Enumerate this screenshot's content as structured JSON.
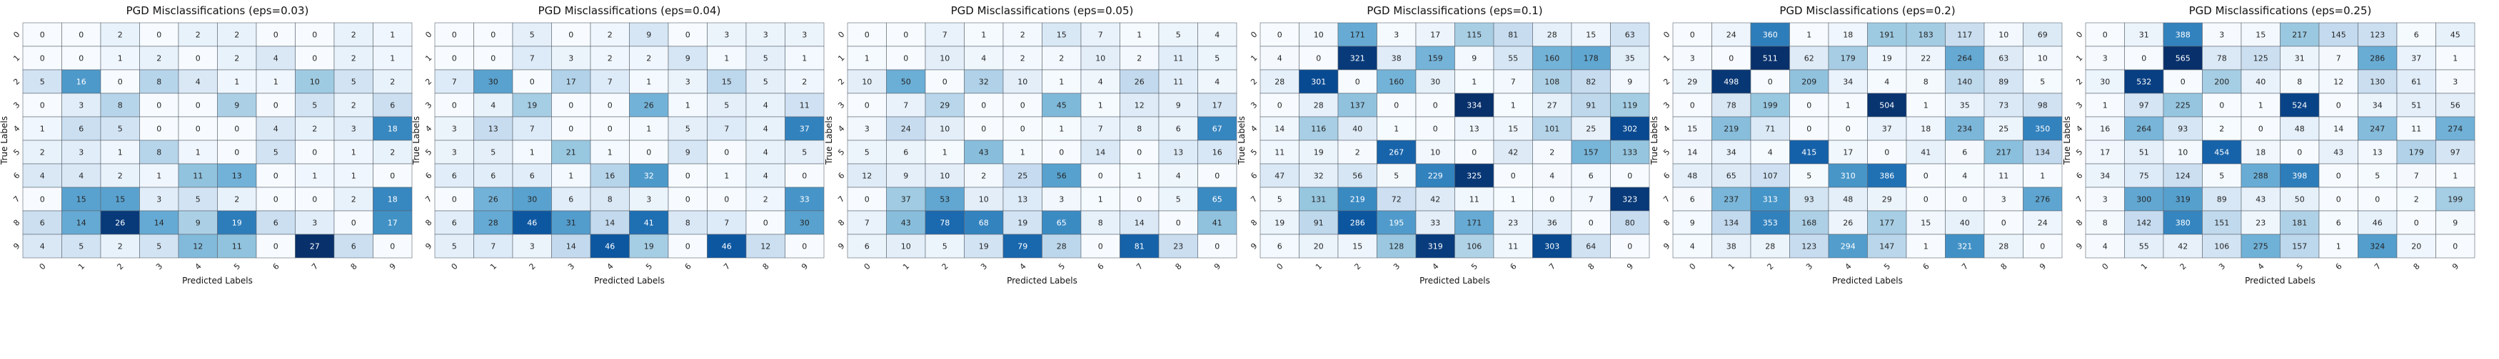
{
  "chart_data": [
    {
      "type": "heatmap",
      "title": "PGD Misclassifications (eps=0.03)",
      "xlabel": "Predicted Labels",
      "ylabel": "True Labels",
      "x_tick_labels": [
        "0",
        "1",
        "2",
        "3",
        "4",
        "5",
        "6",
        "7",
        "8",
        "9"
      ],
      "y_tick_labels": [
        "0",
        "1",
        "2",
        "3",
        "4",
        "5",
        "6",
        "7",
        "8",
        "9"
      ],
      "colormap": "Blues",
      "color_range": [
        0,
        27
      ],
      "values": [
        [
          0,
          0,
          2,
          0,
          2,
          2,
          0,
          0,
          2,
          1
        ],
        [
          0,
          0,
          1,
          2,
          0,
          2,
          4,
          0,
          2,
          1
        ],
        [
          5,
          16,
          0,
          8,
          4,
          1,
          1,
          10,
          5,
          2
        ],
        [
          0,
          3,
          8,
          0,
          0,
          9,
          0,
          5,
          2,
          6
        ],
        [
          1,
          6,
          5,
          0,
          0,
          0,
          4,
          2,
          3,
          18
        ],
        [
          2,
          3,
          1,
          8,
          1,
          0,
          5,
          0,
          1,
          2
        ],
        [
          4,
          4,
          2,
          1,
          11,
          13,
          0,
          1,
          1,
          0
        ],
        [
          0,
          15,
          15,
          3,
          5,
          2,
          0,
          0,
          2,
          18
        ],
        [
          6,
          14,
          26,
          14,
          9,
          19,
          6,
          3,
          0,
          17
        ],
        [
          4,
          5,
          2,
          5,
          12,
          11,
          0,
          27,
          6,
          0
        ]
      ]
    },
    {
      "type": "heatmap",
      "title": "PGD Misclassifications (eps=0.04)",
      "xlabel": "Predicted Labels",
      "ylabel": "True Labels",
      "x_tick_labels": [
        "0",
        "1",
        "2",
        "3",
        "4",
        "5",
        "6",
        "7",
        "8",
        "9"
      ],
      "y_tick_labels": [
        "0",
        "1",
        "2",
        "3",
        "4",
        "5",
        "6",
        "7",
        "8",
        "9"
      ],
      "colormap": "Blues",
      "color_range": [
        0,
        54
      ],
      "values": [
        [
          0,
          0,
          5,
          0,
          2,
          9,
          0,
          3,
          3,
          3
        ],
        [
          0,
          0,
          7,
          3,
          2,
          2,
          9,
          1,
          5,
          1
        ],
        [
          7,
          30,
          0,
          17,
          7,
          1,
          3,
          15,
          5,
          2
        ],
        [
          0,
          4,
          19,
          0,
          0,
          26,
          1,
          5,
          4,
          11
        ],
        [
          3,
          13,
          7,
          0,
          0,
          1,
          5,
          7,
          4,
          37
        ],
        [
          3,
          5,
          1,
          21,
          1,
          0,
          9,
          0,
          4,
          5
        ],
        [
          6,
          6,
          6,
          1,
          16,
          32,
          0,
          1,
          4,
          0
        ],
        [
          0,
          26,
          30,
          6,
          8,
          3,
          0,
          0,
          2,
          33
        ],
        [
          6,
          28,
          46,
          31,
          14,
          41,
          8,
          7,
          0,
          30
        ],
        [
          5,
          7,
          3,
          14,
          46,
          19,
          0,
          46,
          12,
          0
        ]
      ]
    },
    {
      "type": "heatmap",
      "title": "PGD Misclassifications (eps=0.05)",
      "xlabel": "Predicted Labels",
      "ylabel": "True Labels",
      "x_tick_labels": [
        "0",
        "1",
        "2",
        "3",
        "4",
        "5",
        "6",
        "7",
        "8",
        "9"
      ],
      "y_tick_labels": [
        "0",
        "1",
        "2",
        "3",
        "4",
        "5",
        "6",
        "7",
        "8",
        "9"
      ],
      "colormap": "Blues",
      "color_range": [
        0,
        100
      ],
      "values": [
        [
          0,
          0,
          7,
          1,
          2,
          15,
          7,
          1,
          5,
          4
        ],
        [
          1,
          0,
          10,
          4,
          2,
          2,
          10,
          2,
          11,
          5
        ],
        [
          10,
          50,
          0,
          32,
          10,
          1,
          4,
          26,
          11,
          4
        ],
        [
          0,
          7,
          29,
          0,
          0,
          45,
          1,
          12,
          9,
          17
        ],
        [
          3,
          24,
          10,
          0,
          0,
          1,
          7,
          8,
          6,
          67
        ],
        [
          5,
          6,
          1,
          43,
          1,
          0,
          14,
          0,
          13,
          16
        ],
        [
          12,
          9,
          10,
          2,
          25,
          56,
          0,
          1,
          4,
          0
        ],
        [
          0,
          37,
          53,
          10,
          13,
          3,
          1,
          0,
          5,
          65
        ],
        [
          7,
          43,
          78,
          68,
          19,
          65,
          8,
          14,
          0,
          41
        ],
        [
          6,
          10,
          5,
          19,
          79,
          28,
          0,
          81,
          23,
          0
        ]
      ]
    },
    {
      "type": "heatmap",
      "title": "PGD Misclassifications (eps=0.1)",
      "xlabel": "Predicted Labels",
      "ylabel": "True Labels",
      "x_tick_labels": [
        "0",
        "1",
        "2",
        "3",
        "4",
        "5",
        "6",
        "7",
        "8",
        "9"
      ],
      "y_tick_labels": [
        "0",
        "1",
        "2",
        "3",
        "4",
        "5",
        "6",
        "7",
        "8",
        "9"
      ],
      "colormap": "Blues",
      "color_range": [
        0,
        334
      ],
      "values": [
        [
          0,
          10,
          171,
          3,
          17,
          115,
          81,
          28,
          15,
          63
        ],
        [
          4,
          0,
          321,
          38,
          159,
          9,
          55,
          160,
          178,
          35
        ],
        [
          28,
          301,
          0,
          160,
          30,
          1,
          7,
          108,
          82,
          9
        ],
        [
          0,
          28,
          137,
          0,
          0,
          334,
          1,
          27,
          91,
          119
        ],
        [
          14,
          116,
          40,
          1,
          0,
          13,
          15,
          101,
          25,
          302
        ],
        [
          11,
          19,
          2,
          267,
          10,
          0,
          42,
          2,
          157,
          133
        ],
        [
          47,
          32,
          56,
          5,
          229,
          325,
          0,
          4,
          6,
          0
        ],
        [
          5,
          131,
          219,
          72,
          42,
          11,
          1,
          0,
          7,
          323
        ],
        [
          19,
          91,
          286,
          195,
          33,
          171,
          23,
          36,
          0,
          80
        ],
        [
          6,
          20,
          15,
          128,
          319,
          106,
          11,
          303,
          64,
          0
        ]
      ]
    },
    {
      "type": "heatmap",
      "title": "PGD Misclassifications (eps=0.2)",
      "xlabel": "Predicted Labels",
      "ylabel": "True Labels",
      "x_tick_labels": [
        "0",
        "1",
        "2",
        "3",
        "4",
        "5",
        "6",
        "7",
        "8",
        "9"
      ],
      "y_tick_labels": [
        "0",
        "1",
        "2",
        "3",
        "4",
        "5",
        "6",
        "7",
        "8",
        "9"
      ],
      "colormap": "Blues",
      "color_range": [
        0,
        511
      ],
      "values": [
        [
          0,
          24,
          360,
          1,
          18,
          191,
          183,
          117,
          10,
          69
        ],
        [
          3,
          0,
          511,
          62,
          179,
          19,
          22,
          264,
          63,
          10
        ],
        [
          29,
          498,
          0,
          209,
          34,
          4,
          8,
          140,
          89,
          5
        ],
        [
          0,
          78,
          199,
          0,
          1,
          504,
          1,
          35,
          73,
          98
        ],
        [
          15,
          219,
          71,
          0,
          0,
          37,
          18,
          234,
          25,
          350
        ],
        [
          14,
          34,
          4,
          415,
          17,
          0,
          41,
          6,
          217,
          134
        ],
        [
          48,
          65,
          107,
          5,
          310,
          386,
          0,
          4,
          11,
          1
        ],
        [
          6,
          237,
          313,
          93,
          48,
          29,
          0,
          0,
          3,
          276
        ],
        [
          9,
          134,
          353,
          168,
          26,
          177,
          15,
          40,
          0,
          24
        ],
        [
          4,
          38,
          28,
          123,
          294,
          147,
          1,
          321,
          28,
          0
        ]
      ]
    },
    {
      "type": "heatmap",
      "title": "PGD Misclassifications (eps=0.25)",
      "xlabel": "Predicted Labels",
      "ylabel": "True Labels",
      "x_tick_labels": [
        "0",
        "1",
        "2",
        "3",
        "4",
        "5",
        "6",
        "7",
        "8",
        "9"
      ],
      "y_tick_labels": [
        "0",
        "1",
        "2",
        "3",
        "4",
        "5",
        "6",
        "7",
        "8",
        "9"
      ],
      "colormap": "Blues",
      "color_range": [
        0,
        565
      ],
      "values": [
        [
          0,
          31,
          388,
          3,
          15,
          217,
          145,
          123,
          6,
          45
        ],
        [
          3,
          0,
          565,
          78,
          125,
          31,
          7,
          286,
          37,
          1
        ],
        [
          30,
          532,
          0,
          200,
          40,
          8,
          12,
          130,
          61,
          3
        ],
        [
          1,
          97,
          225,
          0,
          1,
          524,
          0,
          34,
          51,
          56
        ],
        [
          16,
          264,
          93,
          2,
          0,
          48,
          14,
          247,
          11,
          274
        ],
        [
          17,
          51,
          10,
          454,
          18,
          0,
          43,
          13,
          179,
          97
        ],
        [
          34,
          75,
          124,
          5,
          288,
          398,
          0,
          5,
          7,
          1
        ],
        [
          3,
          300,
          319,
          89,
          43,
          50,
          0,
          0,
          2,
          199
        ],
        [
          8,
          142,
          380,
          151,
          23,
          181,
          6,
          46,
          0,
          9
        ],
        [
          4,
          55,
          42,
          106,
          275,
          157,
          1,
          324,
          20,
          0
        ]
      ]
    }
  ]
}
